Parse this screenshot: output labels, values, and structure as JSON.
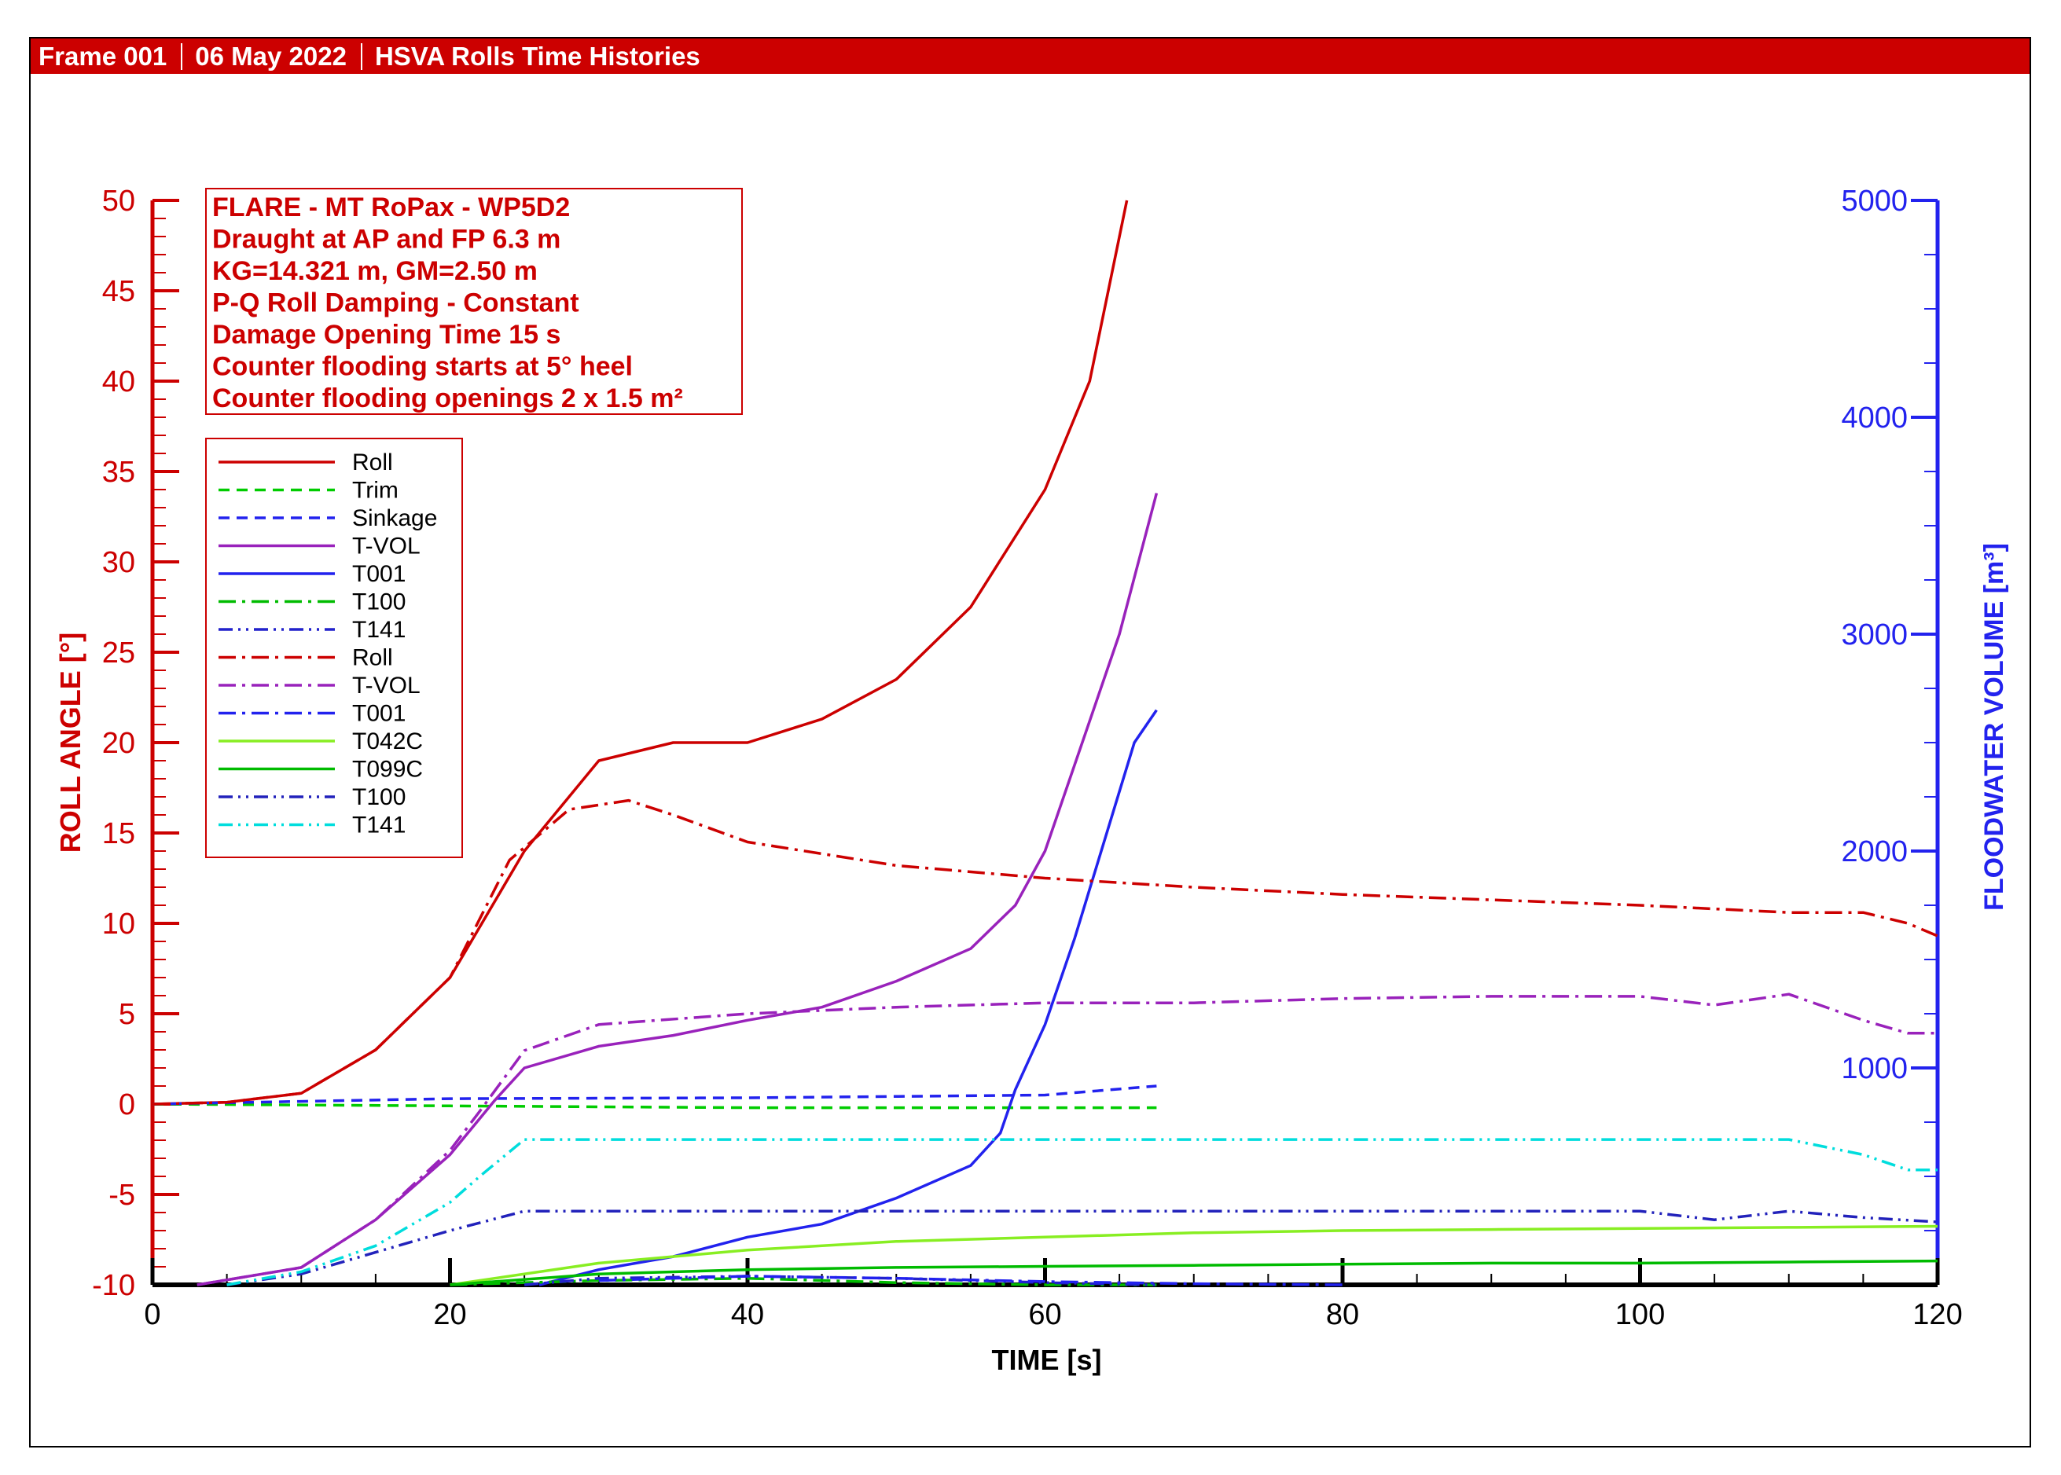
{
  "header": {
    "frame": "Frame 001",
    "date": "06 May 2022",
    "title": "HSVA Rolls Time Histories"
  },
  "chart_data": {
    "type": "line",
    "xlabel": "TIME [s]",
    "ylabel": "ROLL ANGLE [°]",
    "y2label": "FLOODWATER VOLUME [m³]",
    "xlim": [
      0,
      120
    ],
    "ylim": [
      -10,
      50
    ],
    "y2lim": [
      0,
      5000
    ],
    "x_ticks": [
      "0",
      "20",
      "40",
      "60",
      "80",
      "100",
      "120"
    ],
    "y_ticks": [
      "-10",
      "-5",
      "0",
      "5",
      "10",
      "15",
      "20",
      "25",
      "30",
      "35",
      "40",
      "45",
      "50"
    ],
    "y2_ticks": [
      "1000",
      "2000",
      "3000",
      "4000",
      "5000"
    ],
    "info_box": [
      "FLARE - MT RoPax - WP5D2",
      "Draught at AP and FP 6.3 m",
      "KG=14.321 m, GM=2.50 m",
      "P-Q Roll Damping - Constant",
      "Damage Opening Time 15 s",
      "Counter flooding starts at 5° heel",
      "Counter flooding openings 2 x 1.5 m²"
    ],
    "legend_position": "top-left",
    "colors": {
      "roll_axis": "#cc0000",
      "volume_axis": "#2222ee",
      "header": "#cc0000"
    },
    "series": [
      {
        "name": "Roll",
        "axis": "left",
        "color": "#cc0000",
        "dash": "solid",
        "x": [
          0,
          5,
          10,
          15,
          20,
          25,
          30,
          35,
          40,
          45,
          50,
          55,
          60,
          63,
          65.5
        ],
        "y": [
          0,
          0.1,
          0.6,
          3,
          7,
          14,
          19,
          20,
          20,
          21.3,
          23.5,
          27.5,
          34,
          40,
          50
        ]
      },
      {
        "name": "Trim",
        "axis": "left",
        "color": "#00cc00",
        "dash": "dash",
        "x": [
          0,
          20,
          40,
          67.5
        ],
        "y": [
          0,
          -0.1,
          -0.2,
          -0.2
        ]
      },
      {
        "name": "Sinkage",
        "axis": "left",
        "color": "#2222ee",
        "dash": "dash",
        "x": [
          0,
          20,
          40,
          60,
          67.5
        ],
        "y": [
          0,
          0.3,
          0.35,
          0.5,
          1
        ]
      },
      {
        "name": "T-VOL",
        "axis": "right",
        "color": "#9922bb",
        "dash": "solid",
        "x": [
          3,
          10,
          15,
          20,
          23,
          25,
          30,
          35,
          40,
          45,
          50,
          55,
          58,
          60,
          63,
          65,
          67.5
        ],
        "y": [
          0,
          80,
          300,
          600,
          850,
          1000,
          1100,
          1150,
          1220,
          1280,
          1400,
          1550,
          1750,
          2000,
          2600,
          3000,
          3650
        ]
      },
      {
        "name": "T001",
        "axis": "right",
        "color": "#2222ee",
        "dash": "solid",
        "x": [
          26,
          30,
          35,
          40,
          45,
          50,
          55,
          57,
          58,
          60,
          62,
          64,
          66,
          67.5
        ],
        "y": [
          0,
          70,
          130,
          220,
          280,
          400,
          550,
          700,
          900,
          1200,
          1600,
          2050,
          2500,
          2650
        ]
      },
      {
        "name": "T100",
        "axis": "right",
        "color": "#00bb00",
        "dash": "dashdot",
        "x": [
          20,
          30,
          40,
          50,
          60,
          67.5
        ],
        "y": [
          0,
          20,
          30,
          10,
          0,
          0
        ]
      },
      {
        "name": "T141",
        "axis": "right",
        "color": "#2222cc",
        "dash": "dashdotdot",
        "x": [
          25,
          30,
          40,
          50,
          60,
          67.5
        ],
        "y": [
          0,
          30,
          40,
          30,
          10,
          0
        ]
      },
      {
        "name": "Roll",
        "axis": "left",
        "color": "#cc0000",
        "dash": "dashdot",
        "x": [
          0,
          5,
          10,
          15,
          20,
          24,
          28,
          32,
          35,
          40,
          50,
          60,
          70,
          80,
          90,
          100,
          110,
          115,
          118,
          120
        ],
        "y": [
          0,
          0.1,
          0.6,
          3,
          7,
          13.5,
          16.3,
          16.8,
          16,
          14.5,
          13.2,
          12.5,
          12,
          11.6,
          11.3,
          11,
          10.6,
          10.6,
          10,
          9.3
        ]
      },
      {
        "name": "T-VOL",
        "axis": "right",
        "color": "#9922bb",
        "dash": "dashdot",
        "x": [
          3,
          10,
          15,
          20,
          22,
          25,
          30,
          40,
          50,
          60,
          70,
          80,
          90,
          100,
          105,
          110,
          115,
          118,
          120
        ],
        "y": [
          0,
          80,
          300,
          620,
          800,
          1080,
          1200,
          1250,
          1280,
          1300,
          1300,
          1320,
          1330,
          1330,
          1290,
          1340,
          1220,
          1160,
          1160
        ]
      },
      {
        "name": "T001",
        "axis": "right",
        "color": "#2222ee",
        "dash": "dashdot",
        "x": [
          30,
          40,
          50,
          60,
          70,
          80
        ],
        "y": [
          20,
          40,
          30,
          15,
          5,
          0
        ]
      },
      {
        "name": "T042C",
        "axis": "right",
        "color": "#88ee22",
        "dash": "solid",
        "x": [
          20,
          30,
          40,
          50,
          60,
          70,
          80,
          90,
          100,
          110,
          120
        ],
        "y": [
          0,
          100,
          160,
          200,
          220,
          240,
          250,
          255,
          260,
          265,
          270
        ]
      },
      {
        "name": "T099C",
        "axis": "right",
        "color": "#00bb00",
        "dash": "solid",
        "x": [
          20,
          30,
          40,
          50,
          60,
          70,
          80,
          90,
          100,
          110,
          120
        ],
        "y": [
          0,
          50,
          70,
          80,
          85,
          90,
          95,
          100,
          100,
          105,
          110
        ]
      },
      {
        "name": "T100",
        "axis": "right",
        "color": "#2222bb",
        "dash": "dashdotdot",
        "x": [
          5,
          10,
          15,
          20,
          25,
          30,
          40,
          60,
          80,
          100,
          105,
          110,
          115,
          120
        ],
        "y": [
          0,
          50,
          150,
          250,
          340,
          340,
          340,
          340,
          340,
          340,
          300,
          340,
          310,
          290
        ]
      },
      {
        "name": "T141",
        "axis": "right",
        "color": "#00dddd",
        "dash": "dashdotdot",
        "x": [
          5,
          10,
          15,
          20,
          22,
          25,
          30,
          40,
          60,
          80,
          100,
          110,
          115,
          118,
          120
        ],
        "y": [
          0,
          60,
          180,
          380,
          500,
          670,
          670,
          670,
          670,
          670,
          670,
          670,
          600,
          530,
          530
        ]
      }
    ]
  }
}
